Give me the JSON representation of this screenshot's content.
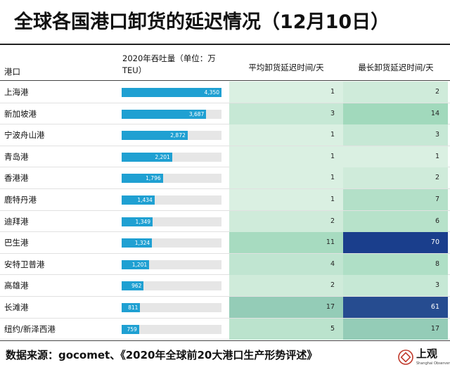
{
  "title": "全球各国港口卸货的延迟情况（12月10日）",
  "header": {
    "port": "港口",
    "teu": "2020年吞吐量（单位：万TEU）",
    "avg_delay": "平均卸货延迟时间/天",
    "max_delay": "最长卸货延迟时间/天"
  },
  "chart_data": {
    "type": "table",
    "columns": [
      "港口",
      "2020年吞吐量（单位：万TEU）",
      "平均卸货延迟时间/天",
      "最长卸货延迟时间/天"
    ],
    "rows": [
      {
        "port": "上海港",
        "teu": 4350,
        "teu_label": "4,350",
        "avg": 1,
        "max": 2
      },
      {
        "port": "新加坡港",
        "teu": 3687,
        "teu_label": "3,687",
        "avg": 3,
        "max": 14
      },
      {
        "port": "宁波舟山港",
        "teu": 2872,
        "teu_label": "2,872",
        "avg": 1,
        "max": 3
      },
      {
        "port": "青岛港",
        "teu": 2201,
        "teu_label": "2,201",
        "avg": 1,
        "max": 1
      },
      {
        "port": "香港港",
        "teu": 1796,
        "teu_label": "1,796",
        "avg": 1,
        "max": 2
      },
      {
        "port": "鹿特丹港",
        "teu": 1434,
        "teu_label": "1,434",
        "avg": 1,
        "max": 7
      },
      {
        "port": "迪拜港",
        "teu": 1349,
        "teu_label": "1,349",
        "avg": 2,
        "max": 6
      },
      {
        "port": "巴生港",
        "teu": 1324,
        "teu_label": "1,324",
        "avg": 11,
        "max": 70
      },
      {
        "port": "安特卫普港",
        "teu": 1201,
        "teu_label": "1,201",
        "avg": 4,
        "max": 8
      },
      {
        "port": "高雄港",
        "teu": 962,
        "teu_label": "962",
        "avg": 2,
        "max": 3
      },
      {
        "port": "长滩港",
        "teu": 811,
        "teu_label": "811",
        "avg": 17,
        "max": 61
      },
      {
        "port": "纽约/新泽西港",
        "teu": 759,
        "teu_label": "759",
        "avg": 5,
        "max": 17
      }
    ],
    "teu_max": 4350,
    "colors": {
      "bar": "#1fa0d2",
      "bar_track": "#e6e6e6",
      "heat_low": "#eef8ef",
      "heat_mid": "#9fd8bb",
      "heat_high": "#1a3e8c"
    }
  },
  "source": "数据来源：gocomet、《2020年全球前20大港口生产形势评述》",
  "logo": {
    "name": "上观",
    "subtitle": "Shanghai Observer"
  }
}
